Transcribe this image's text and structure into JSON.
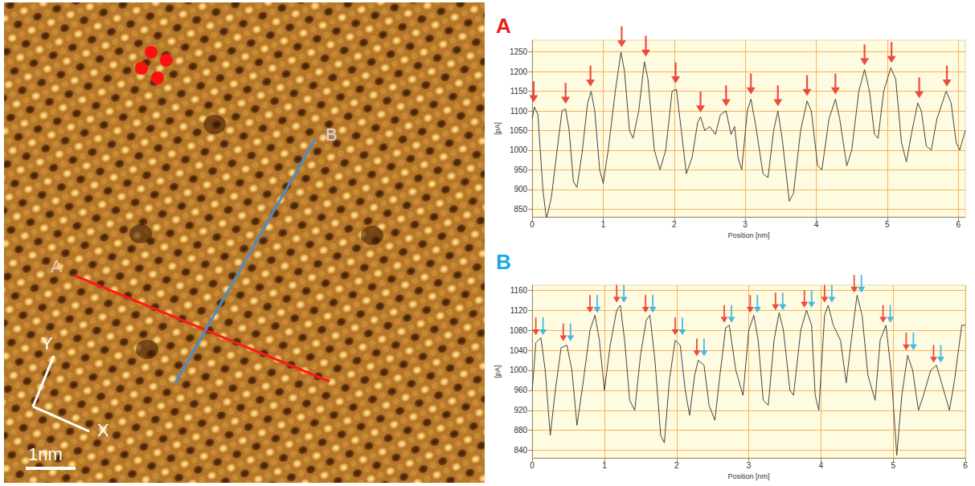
{
  "image": {
    "labels": {
      "line_a": "A",
      "line_b": "B",
      "axis_x": "X",
      "axis_y": "Y",
      "scale_bar": "1nm"
    }
  },
  "chart_data": [
    {
      "type": "line",
      "title": "A",
      "color": "#e8201a",
      "x_label": "Position [nm]",
      "y_label": "[pA]",
      "xlim": [
        0,
        6.1
      ],
      "xticks": [
        0,
        1,
        2,
        3,
        4,
        5,
        6
      ],
      "ylim": [
        830,
        1280
      ],
      "yticks": [
        850,
        900,
        950,
        1000,
        1050,
        1100,
        1150,
        1200,
        1250
      ],
      "grid": true,
      "series": [
        {
          "type": "line",
          "color": "#444444",
          "values": [
            [
              0,
              1080
            ],
            [
              0.03,
              1110
            ],
            [
              0.08,
              1090
            ],
            [
              0.15,
              900
            ],
            [
              0.2,
              825
            ],
            [
              0.27,
              880
            ],
            [
              0.35,
              1000
            ],
            [
              0.42,
              1100
            ],
            [
              0.47,
              1105
            ],
            [
              0.52,
              1050
            ],
            [
              0.58,
              920
            ],
            [
              0.63,
              905
            ],
            [
              0.7,
              990
            ],
            [
              0.78,
              1120
            ],
            [
              0.83,
              1150
            ],
            [
              0.88,
              1100
            ],
            [
              0.95,
              950
            ],
            [
              1.0,
              915
            ],
            [
              1.07,
              1000
            ],
            [
              1.17,
              1150
            ],
            [
              1.25,
              1250
            ],
            [
              1.3,
              1200
            ],
            [
              1.37,
              1050
            ],
            [
              1.42,
              1030
            ],
            [
              1.5,
              1100
            ],
            [
              1.58,
              1225
            ],
            [
              1.63,
              1180
            ],
            [
              1.72,
              1000
            ],
            [
              1.8,
              950
            ],
            [
              1.88,
              1000
            ],
            [
              1.97,
              1150
            ],
            [
              2.03,
              1155
            ],
            [
              2.1,
              1050
            ],
            [
              2.17,
              940
            ],
            [
              2.25,
              980
            ],
            [
              2.33,
              1070
            ],
            [
              2.37,
              1085
            ],
            [
              2.43,
              1050
            ],
            [
              2.5,
              1060
            ],
            [
              2.58,
              1040
            ],
            [
              2.65,
              1090
            ],
            [
              2.73,
              1100
            ],
            [
              2.8,
              1040
            ],
            [
              2.85,
              1060
            ],
            [
              2.9,
              980
            ],
            [
              2.95,
              950
            ],
            [
              3.03,
              1100
            ],
            [
              3.08,
              1130
            ],
            [
              3.15,
              1060
            ],
            [
              3.25,
              940
            ],
            [
              3.32,
              930
            ],
            [
              3.4,
              1050
            ],
            [
              3.46,
              1100
            ],
            [
              3.52,
              1030
            ],
            [
              3.62,
              870
            ],
            [
              3.68,
              890
            ],
            [
              3.78,
              1050
            ],
            [
              3.87,
              1125
            ],
            [
              3.93,
              1100
            ],
            [
              4.02,
              960
            ],
            [
              4.08,
              950
            ],
            [
              4.18,
              1080
            ],
            [
              4.27,
              1130
            ],
            [
              4.33,
              1080
            ],
            [
              4.43,
              960
            ],
            [
              4.5,
              1000
            ],
            [
              4.6,
              1150
            ],
            [
              4.68,
              1205
            ],
            [
              4.75,
              1150
            ],
            [
              4.82,
              1040
            ],
            [
              4.87,
              1030
            ],
            [
              4.95,
              1150
            ],
            [
              5.05,
              1210
            ],
            [
              5.12,
              1180
            ],
            [
              5.2,
              1020
            ],
            [
              5.27,
              970
            ],
            [
              5.35,
              1050
            ],
            [
              5.43,
              1120
            ],
            [
              5.48,
              1100
            ],
            [
              5.55,
              1010
            ],
            [
              5.62,
              1000
            ],
            [
              5.7,
              1080
            ],
            [
              5.83,
              1150
            ],
            [
              5.9,
              1120
            ],
            [
              5.97,
              1020
            ],
            [
              6.02,
              1000
            ],
            [
              6.1,
              1050
            ]
          ]
        },
        {
          "type": "scatter",
          "marker": "arrow",
          "color": "#e8201a",
          "values": [
            [
              0.02,
              1122
            ],
            [
              0.47,
              1118
            ],
            [
              0.82,
              1162
            ],
            [
              1.26,
              1262
            ],
            [
              1.6,
              1238
            ],
            [
              2.02,
              1170
            ],
            [
              2.37,
              1096
            ],
            [
              2.73,
              1112
            ],
            [
              3.08,
              1142
            ],
            [
              3.46,
              1112
            ],
            [
              3.87,
              1138
            ],
            [
              4.27,
              1142
            ],
            [
              4.68,
              1216
            ],
            [
              5.06,
              1222
            ],
            [
              5.45,
              1132
            ],
            [
              5.84,
              1162
            ]
          ]
        }
      ]
    },
    {
      "type": "line",
      "title": "B",
      "color": "#1aa8e6",
      "x_label": "Position [nm]",
      "y_label": "[pA]",
      "xlim": [
        0,
        6
      ],
      "xticks": [
        0,
        1,
        2,
        3,
        4,
        5,
        6
      ],
      "ylim": [
        825,
        1170
      ],
      "yticks": [
        840,
        880,
        920,
        960,
        1000,
        1040,
        1080,
        1120,
        1160
      ],
      "grid": true,
      "series": [
        {
          "type": "line",
          "color": "#444444",
          "values": [
            [
              0,
              960
            ],
            [
              0.05,
              1055
            ],
            [
              0.12,
              1065
            ],
            [
              0.18,
              1000
            ],
            [
              0.25,
              870
            ],
            [
              0.32,
              960
            ],
            [
              0.4,
              1045
            ],
            [
              0.48,
              1050
            ],
            [
              0.55,
              1000
            ],
            [
              0.62,
              890
            ],
            [
              0.7,
              970
            ],
            [
              0.8,
              1080
            ],
            [
              0.87,
              1110
            ],
            [
              0.93,
              1060
            ],
            [
              1.0,
              960
            ],
            [
              1.08,
              1050
            ],
            [
              1.17,
              1120
            ],
            [
              1.22,
              1130
            ],
            [
              1.28,
              1060
            ],
            [
              1.35,
              940
            ],
            [
              1.42,
              920
            ],
            [
              1.5,
              1030
            ],
            [
              1.58,
              1100
            ],
            [
              1.63,
              1110
            ],
            [
              1.7,
              1020
            ],
            [
              1.78,
              870
            ],
            [
              1.83,
              855
            ],
            [
              1.9,
              980
            ],
            [
              1.98,
              1060
            ],
            [
              2.05,
              1050
            ],
            [
              2.12,
              960
            ],
            [
              2.18,
              910
            ],
            [
              2.25,
              990
            ],
            [
              2.3,
              1020
            ],
            [
              2.38,
              1010
            ],
            [
              2.45,
              930
            ],
            [
              2.53,
              900
            ],
            [
              2.6,
              990
            ],
            [
              2.68,
              1085
            ],
            [
              2.73,
              1090
            ],
            [
              2.82,
              1000
            ],
            [
              2.92,
              950
            ],
            [
              3.0,
              1080
            ],
            [
              3.07,
              1110
            ],
            [
              3.13,
              1060
            ],
            [
              3.2,
              940
            ],
            [
              3.27,
              930
            ],
            [
              3.35,
              1060
            ],
            [
              3.42,
              1115
            ],
            [
              3.48,
              1080
            ],
            [
              3.57,
              960
            ],
            [
              3.62,
              950
            ],
            [
              3.72,
              1080
            ],
            [
              3.8,
              1120
            ],
            [
              3.87,
              1090
            ],
            [
              3.92,
              950
            ],
            [
              3.97,
              920
            ],
            [
              4.05,
              1110
            ],
            [
              4.1,
              1130
            ],
            [
              4.17,
              1090
            ],
            [
              4.27,
              1060
            ],
            [
              4.35,
              975
            ],
            [
              4.42,
              1060
            ],
            [
              4.5,
              1150
            ],
            [
              4.57,
              1110
            ],
            [
              4.65,
              990
            ],
            [
              4.75,
              940
            ],
            [
              4.82,
              1060
            ],
            [
              4.9,
              1090
            ],
            [
              4.97,
              1000
            ],
            [
              5.05,
              830
            ],
            [
              5.12,
              950
            ],
            [
              5.2,
              1030
            ],
            [
              5.27,
              1000
            ],
            [
              5.35,
              920
            ],
            [
              5.42,
              950
            ],
            [
              5.52,
              1000
            ],
            [
              5.6,
              1010
            ],
            [
              5.68,
              970
            ],
            [
              5.78,
              920
            ],
            [
              5.85,
              980
            ],
            [
              5.95,
              1090
            ],
            [
              6.0,
              1090
            ]
          ]
        },
        {
          "type": "scatter",
          "marker": "arrow",
          "color": "#e8201a",
          "values": [
            [
              0.05,
              1070
            ],
            [
              0.43,
              1058
            ],
            [
              0.8,
              1115
            ],
            [
              1.17,
              1135
            ],
            [
              1.57,
              1115
            ],
            [
              1.98,
              1070
            ],
            [
              2.28,
              1028
            ],
            [
              2.66,
              1095
            ],
            [
              3.02,
              1115
            ],
            [
              3.37,
              1120
            ],
            [
              3.77,
              1125
            ],
            [
              4.05,
              1135
            ],
            [
              4.46,
              1155
            ],
            [
              4.86,
              1095
            ],
            [
              5.18,
              1040
            ],
            [
              5.56,
              1015
            ]
          ]
        },
        {
          "type": "scatter",
          "marker": "arrow",
          "color": "#1aa8e6",
          "values": [
            [
              0.15,
              1070
            ],
            [
              0.53,
              1058
            ],
            [
              0.9,
              1115
            ],
            [
              1.27,
              1135
            ],
            [
              1.67,
              1115
            ],
            [
              2.08,
              1070
            ],
            [
              2.38,
              1028
            ],
            [
              2.76,
              1095
            ],
            [
              3.12,
              1115
            ],
            [
              3.47,
              1120
            ],
            [
              3.87,
              1125
            ],
            [
              4.15,
              1135
            ],
            [
              4.56,
              1155
            ],
            [
              4.96,
              1095
            ],
            [
              5.28,
              1040
            ],
            [
              5.66,
              1015
            ]
          ]
        }
      ]
    }
  ]
}
